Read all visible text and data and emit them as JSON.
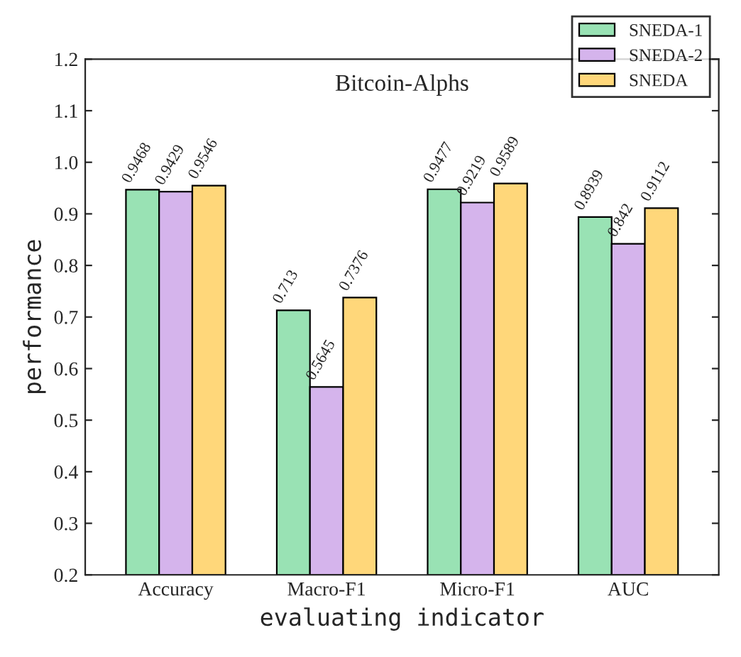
{
  "chart_data": {
    "type": "bar",
    "title": "Bitcoin-Alphs",
    "xlabel": "evaluating indicator",
    "ylabel": "performance",
    "categories": [
      "Accuracy",
      "Macro-F1",
      "Micro-F1",
      "AUC"
    ],
    "series": [
      {
        "name": "SNEDA-1",
        "color": "#99e2b4",
        "values": [
          0.9468,
          0.713,
          0.9477,
          0.8939
        ]
      },
      {
        "name": "SNEDA-2",
        "color": "#d5b4ec",
        "values": [
          0.9429,
          0.5645,
          0.9219,
          0.842
        ]
      },
      {
        "name": "SNEDA",
        "color": "#ffd77a",
        "values": [
          0.9546,
          0.7376,
          0.9589,
          0.9112
        ]
      }
    ],
    "ylim": [
      0.2,
      1.2
    ],
    "yticks": [
      0.2,
      0.3,
      0.4,
      0.5,
      0.6,
      0.7,
      0.8,
      0.9,
      {
        "value": 1.0,
        "label": "1.0"
      },
      1.1,
      1.2
    ],
    "data_labels": true,
    "legend": "top right",
    "grid": false
  }
}
